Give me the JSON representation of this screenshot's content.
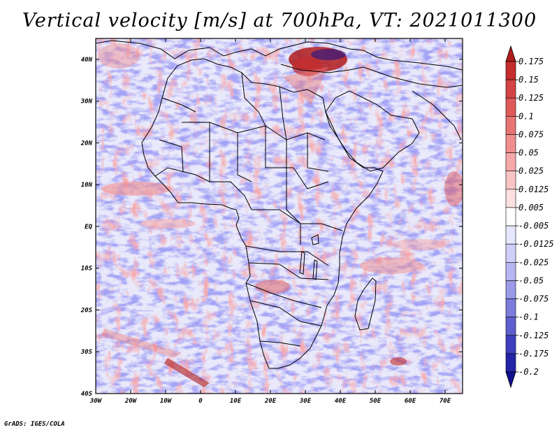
{
  "title": "Vertical velocity [m/s] at 700hPa, VT: 2021011300",
  "credit": "GrADS: IGES/COLA",
  "map": {
    "region": "Africa",
    "x_ticks": [
      "30W",
      "20W",
      "10W",
      "0",
      "10E",
      "20E",
      "30E",
      "40E",
      "50E",
      "60E",
      "70E"
    ],
    "y_ticks": [
      "40N",
      "30N",
      "20N",
      "10N",
      "EQ",
      "10S",
      "20S",
      "30S",
      "40S"
    ],
    "lon_range": [
      -30,
      75
    ],
    "lat_range": [
      -40,
      45
    ]
  },
  "colorbar": {
    "labels": [
      "0.175",
      "0.15",
      "0.125",
      "0.1",
      "0.075",
      "0.05",
      "0.025",
      "0.0125",
      "0.005",
      "-0.005",
      "-0.0125",
      "-0.025",
      "-0.05",
      "-0.075",
      "-0.1",
      "-0.125",
      "-0.175",
      "-0.2"
    ],
    "colors": [
      "#b01c1c",
      "#c52c2c",
      "#d44444",
      "#e05a5a",
      "#e87474",
      "#f08e8e",
      "#f6a8a8",
      "#fac4c4",
      "#fde0e0",
      "#ffffff",
      "#e6e6fc",
      "#cfcff8",
      "#b6b6f2",
      "#9a9ae8",
      "#7c7cdc",
      "#5e5ece",
      "#3e3ebe",
      "#2424a8",
      "#10108f"
    ]
  }
}
